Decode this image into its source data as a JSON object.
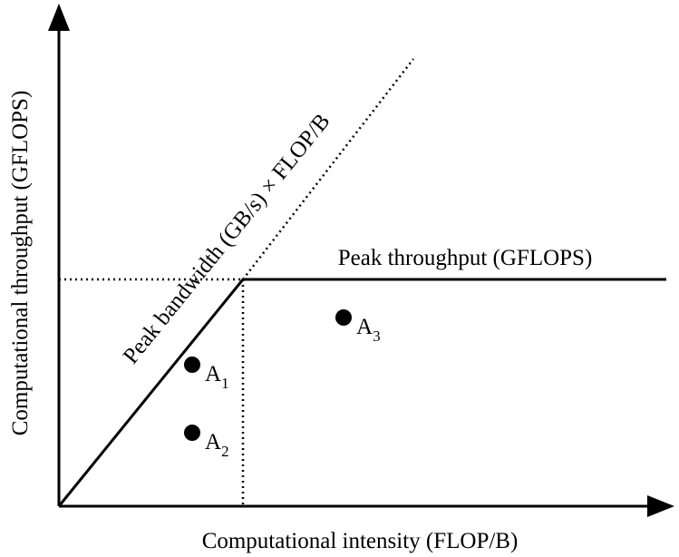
{
  "axes": {
    "y_label": "Computational throughput (GFLOPS)",
    "x_label": "Computational intensity (FLOP/B)"
  },
  "roofs": {
    "bandwidth_label": "Peak bandwidth (GB/s) × FLOP/B",
    "throughput_label": "Peak throughput (GFLOPS)"
  },
  "points": [
    {
      "label": "A",
      "subscript": "1"
    },
    {
      "label": "A",
      "subscript": "2"
    },
    {
      "label": "A",
      "subscript": "3"
    }
  ]
}
